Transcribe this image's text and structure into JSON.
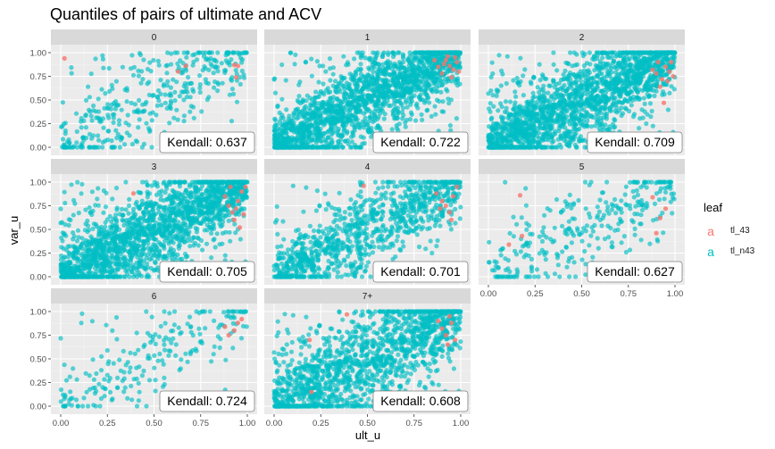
{
  "chart_data": {
    "type": "scatter",
    "title": "Quantiles of pairs of ultimate and ACV",
    "xlabel": "ult_u",
    "ylabel": "var_u",
    "xlim": [
      0,
      1
    ],
    "ylim": [
      0,
      1
    ],
    "x_ticks": [
      "0.00",
      "0.25",
      "0.50",
      "0.75",
      "1.00"
    ],
    "y_ticks": [
      "0.00",
      "0.25",
      "0.50",
      "0.75",
      "1.00"
    ],
    "grid": true,
    "legend": {
      "title": "leaf",
      "position": "right",
      "key_glyph": "a",
      "entries": [
        {
          "name": "tl_43",
          "color": "#F8766D"
        },
        {
          "name": "tl_n43",
          "color": "#00BFC4"
        }
      ]
    },
    "panels": [
      {
        "label": "0",
        "kendall_label": "Kendall:",
        "kendall": "0.637",
        "n_points": 380,
        "tl43_points": [
          [
            0.02,
            0.94
          ],
          [
            0.63,
            0.8
          ],
          [
            0.67,
            0.86
          ],
          [
            0.93,
            0.87
          ],
          [
            0.95,
            0.86
          ],
          [
            0.94,
            0.74
          ]
        ]
      },
      {
        "label": "1",
        "kendall_label": "Kendall:",
        "kendall": "0.722",
        "n_points": 1900,
        "tl43_points": [
          [
            0.92,
            0.92
          ],
          [
            0.94,
            0.86
          ],
          [
            0.96,
            0.82
          ],
          [
            0.98,
            0.9
          ],
          [
            0.9,
            0.78
          ],
          [
            0.88,
            0.85
          ],
          [
            0.97,
            0.95
          ],
          [
            0.99,
            0.8
          ],
          [
            0.86,
            0.92
          ],
          [
            0.95,
            0.74
          ],
          [
            0.93,
            0.96
          ],
          [
            0.91,
            0.88
          ]
        ]
      },
      {
        "label": "2",
        "kendall_label": "Kendall:",
        "kendall": "0.709",
        "n_points": 1900,
        "tl43_points": [
          [
            0.9,
            0.78
          ],
          [
            0.93,
            0.72
          ],
          [
            0.95,
            0.85
          ],
          [
            0.97,
            0.8
          ],
          [
            0.98,
            0.9
          ],
          [
            0.92,
            0.64
          ],
          [
            0.96,
            0.7
          ],
          [
            0.94,
            0.47
          ],
          [
            0.88,
            0.82
          ],
          [
            0.99,
            0.75
          ],
          [
            0.91,
            0.9
          ]
        ]
      },
      {
        "label": "3",
        "kendall_label": "Kendall:",
        "kendall": "0.705",
        "n_points": 1900,
        "tl43_points": [
          [
            0.39,
            0.88
          ],
          [
            0.9,
            0.75
          ],
          [
            0.92,
            0.68
          ],
          [
            0.95,
            0.8
          ],
          [
            0.97,
            0.9
          ],
          [
            0.93,
            0.6
          ],
          [
            0.96,
            0.52
          ],
          [
            0.88,
            0.85
          ],
          [
            0.99,
            0.95
          ],
          [
            0.91,
            0.95
          ],
          [
            0.94,
            0.72
          ],
          [
            0.98,
            0.66
          ]
        ]
      },
      {
        "label": "4",
        "kendall_label": "Kendall:",
        "kendall": "0.701",
        "n_points": 1000,
        "tl43_points": [
          [
            0.48,
            0.96
          ],
          [
            0.89,
            0.72
          ],
          [
            0.92,
            0.75
          ],
          [
            0.94,
            0.68
          ],
          [
            0.96,
            0.85
          ],
          [
            0.98,
            0.95
          ],
          [
            0.87,
            0.88
          ],
          [
            0.95,
            0.6
          ],
          [
            0.9,
            0.8
          ]
        ]
      },
      {
        "label": "5",
        "kendall_label": "Kendall:",
        "kendall": "0.627",
        "n_points": 300,
        "tl43_points": [
          [
            0.11,
            0.34
          ],
          [
            0.18,
            0.43
          ],
          [
            0.17,
            0.86
          ],
          [
            0.88,
            0.84
          ],
          [
            0.92,
            0.62
          ],
          [
            0.95,
            0.72
          ],
          [
            0.9,
            0.46
          ]
        ]
      },
      {
        "label": "6",
        "kendall_label": "Kendall:",
        "kendall": "0.724",
        "n_points": 220,
        "tl43_points": [
          [
            0.9,
            0.75
          ],
          [
            0.93,
            0.8
          ],
          [
            0.95,
            0.88
          ],
          [
            0.97,
            0.92
          ],
          [
            0.88,
            0.84
          ]
        ]
      },
      {
        "label": "7+",
        "kendall_label": "Kendall:",
        "kendall": "0.608",
        "n_points": 1500,
        "tl43_points": [
          [
            0.19,
            0.7
          ],
          [
            0.2,
            0.15
          ],
          [
            0.39,
            0.97
          ],
          [
            0.9,
            0.82
          ],
          [
            0.92,
            0.75
          ],
          [
            0.95,
            0.88
          ],
          [
            0.97,
            0.7
          ],
          [
            0.88,
            0.9
          ],
          [
            0.94,
            0.95
          ],
          [
            0.93,
            0.65
          ]
        ]
      }
    ]
  }
}
